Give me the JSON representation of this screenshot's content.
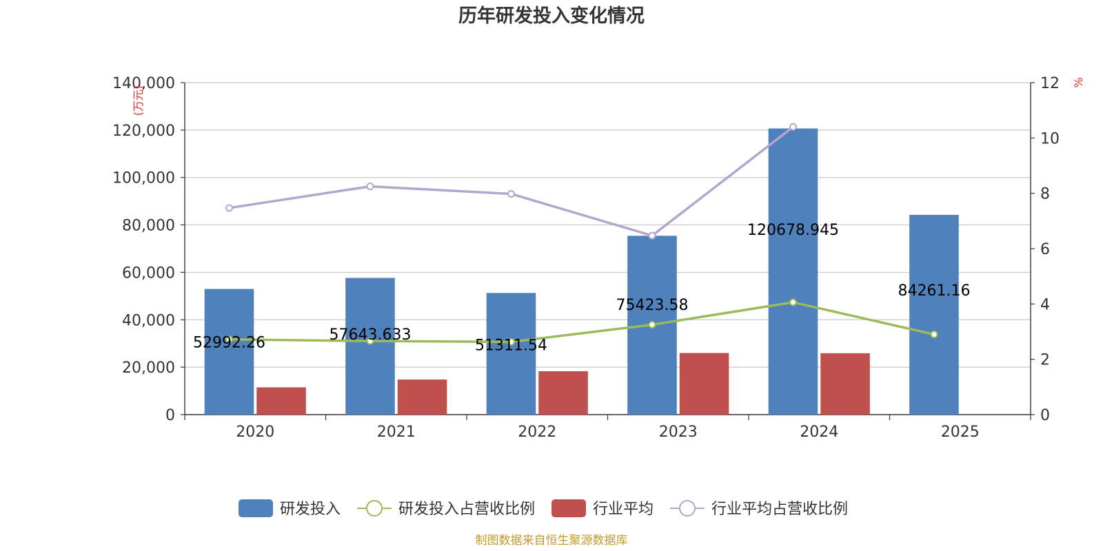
{
  "chart_data": {
    "type": "bar",
    "title": "历年研发投入变化情况",
    "categories": [
      "2020",
      "2021",
      "2022",
      "2023",
      "2024",
      "2025"
    ],
    "y_left": {
      "unit": "(万元)",
      "ticks": [
        "0",
        "20,000",
        "40,000",
        "60,000",
        "80,000",
        "100,000",
        "120,000",
        "140,000"
      ],
      "ylim": [
        0,
        140000
      ]
    },
    "y_right": {
      "unit": "%",
      "ticks": [
        "0",
        "2",
        "4",
        "6",
        "8",
        "10",
        "12"
      ],
      "ylim": [
        0,
        12
      ]
    },
    "series": [
      {
        "name": "研发投入",
        "kind": "bar",
        "axis": "left",
        "color": "#4f81bd",
        "values": [
          52992.26,
          57643.633,
          51311.54,
          75423.58,
          120678.945,
          84261.16
        ],
        "labels": [
          "52992.26",
          "57643.633",
          "51311.54",
          "75423.58",
          "120678.945",
          "84261.16"
        ]
      },
      {
        "name": "研发投入占营收比例",
        "kind": "line",
        "axis": "right",
        "color": "#9bbb59",
        "values": [
          2.72,
          2.66,
          2.63,
          3.25,
          4.06,
          2.9
        ]
      },
      {
        "name": "行业平均",
        "kind": "bar",
        "axis": "left",
        "color": "#c0504d",
        "values": [
          11500,
          14800,
          18300,
          26000,
          25900,
          null
        ]
      },
      {
        "name": "行业平均占营收比例",
        "kind": "line",
        "axis": "right",
        "color": "#b3a5cf",
        "values": [
          7.47,
          8.25,
          7.98,
          6.47,
          10.4,
          null
        ]
      }
    ],
    "grid": true,
    "legend_position": "bottom"
  },
  "source": "制图数据来自恒生聚源数据库"
}
